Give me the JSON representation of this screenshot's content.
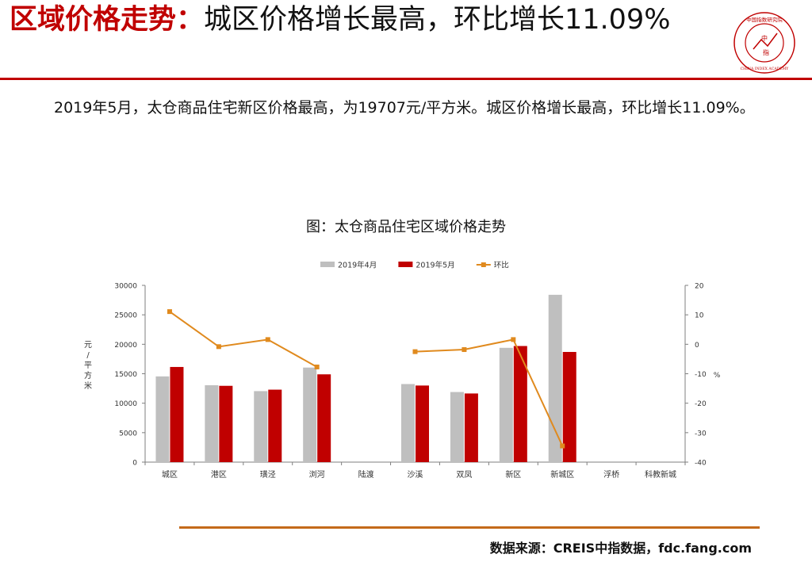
{
  "header": {
    "title_red": "区域价格走势：",
    "title_rest": "城区价格增长最高，环比增长11.09%"
  },
  "logo": {
    "top_text": "中国指数研究院",
    "bottom_text": "CHINA INDEX ACADEMY",
    "center_top": "中",
    "center_bottom": "指"
  },
  "body": {
    "paragraph": "2019年5月，太仓商品住宅新区价格最高，为19707元/平方米。城区价格增长最高，环比增长11.09%。"
  },
  "chart_data": {
    "type": "bar",
    "title": "图：太仓商品住宅区域价格走势",
    "categories": [
      "城区",
      "港区",
      "璜泾",
      "浏河",
      "陆渡",
      "沙溪",
      "双凤",
      "新区",
      "新城区",
      "浮桥",
      "科教新城"
    ],
    "series": [
      {
        "name": "2019年4月",
        "kind": "bar",
        "axis": "left",
        "color": "#bfbfbf",
        "values": [
          14550,
          13050,
          12050,
          16050,
          null,
          13250,
          11900,
          19400,
          28400,
          null,
          null
        ]
      },
      {
        "name": "2019年5月",
        "kind": "bar",
        "axis": "left",
        "color": "#c00000",
        "values": [
          16150,
          12950,
          12300,
          14900,
          null,
          13000,
          11650,
          19707,
          18700,
          null,
          null
        ]
      },
      {
        "name": "环比",
        "kind": "line",
        "axis": "right",
        "color": "#e08a1e",
        "values": [
          11.09,
          -0.8,
          1.6,
          -7.7,
          null,
          -2.5,
          -1.8,
          1.6,
          -34.5,
          null,
          null
        ]
      }
    ],
    "y_left": {
      "label": "元/平方米",
      "min": 0,
      "max": 30000,
      "ticks": [
        0,
        5000,
        10000,
        15000,
        20000,
        25000,
        30000
      ]
    },
    "y_right": {
      "label": "%",
      "min": -40,
      "max": 20,
      "ticks": [
        -40,
        -30,
        -20,
        -10,
        0,
        10,
        20
      ]
    },
    "legend_position": "top",
    "grid": false
  },
  "footer": {
    "source": "数据来源：CREIS中指数据，fdc.fang.com"
  }
}
